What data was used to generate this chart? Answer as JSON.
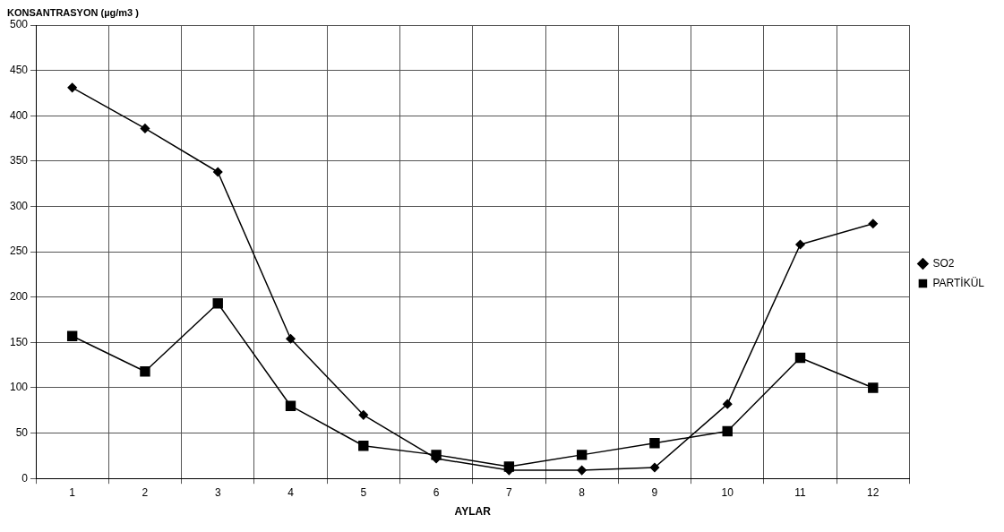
{
  "chart_data": {
    "type": "line",
    "ylabel": "KONSANTRASYON (µg/m3 )",
    "xlabel": "AYLAR",
    "categories": [
      "1",
      "2",
      "3",
      "4",
      "5",
      "6",
      "7",
      "8",
      "9",
      "10",
      "11",
      "12"
    ],
    "series": [
      {
        "name": "SO2",
        "color": "#000000",
        "marker": "diamond",
        "values": [
          431,
          386,
          338,
          154,
          70,
          22,
          9,
          9,
          12,
          82,
          258,
          281
        ]
      },
      {
        "name": "PARTİKÜL",
        "color": "#000000",
        "marker": "square",
        "values": [
          157,
          118,
          193,
          80,
          36,
          26,
          13,
          26,
          39,
          52,
          133,
          100
        ]
      }
    ],
    "ylim": [
      0,
      500
    ],
    "yticks": [
      0,
      50,
      100,
      150,
      200,
      250,
      300,
      350,
      400,
      450,
      500
    ],
    "grid": true,
    "legend": "right",
    "line_style": "solid"
  }
}
